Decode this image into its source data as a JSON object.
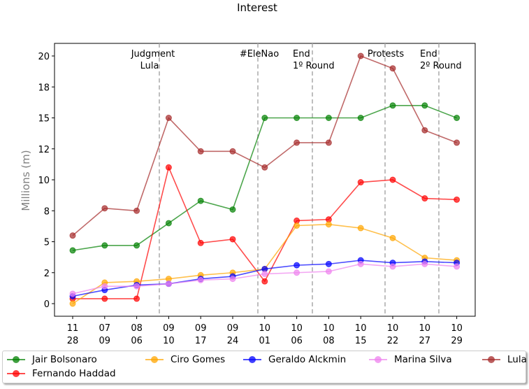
{
  "chart_data": {
    "type": "line",
    "title": "Interest",
    "ylabel": "Millions (m)",
    "xlabel": "",
    "x_ticks": [
      [
        "11",
        "28"
      ],
      [
        "07",
        "09"
      ],
      [
        "08",
        "06"
      ],
      [
        "09",
        "10"
      ],
      [
        "09",
        "17"
      ],
      [
        "09",
        "24"
      ],
      [
        "10",
        "01"
      ],
      [
        "10",
        "06"
      ],
      [
        "10",
        "08"
      ],
      [
        "10",
        "15"
      ],
      [
        "10",
        "22"
      ],
      [
        "10",
        "27"
      ],
      [
        "10",
        "29"
      ]
    ],
    "y_ticks": [
      "0",
      "2",
      "5",
      "8",
      "10",
      "12",
      "15",
      "18",
      "20"
    ],
    "ylim": [
      -1,
      21
    ],
    "grid": false,
    "legend_position": "bottom",
    "events": [
      {
        "label": "Judgment\nLula"
      },
      {
        "label": "#EleNao"
      },
      {
        "label": "End\n1º Round"
      },
      {
        "label": "Protests"
      },
      {
        "label": "End\n2º Round"
      }
    ],
    "series": [
      {
        "name": "Jair Bolsonaro",
        "color": "#008000",
        "values": [
          4.3,
          4.7,
          4.7,
          6.5,
          8.3,
          7.6,
          15.0,
          15.0,
          15.0,
          15.0,
          16.0,
          16.0,
          15.0
        ]
      },
      {
        "name": "Fernando Haddad",
        "color": "#ff0000",
        "values": [
          0.4,
          0.4,
          0.4,
          11.0,
          4.9,
          5.2,
          1.8,
          6.7,
          6.8,
          9.8,
          10.0,
          8.5,
          8.4
        ]
      },
      {
        "name": "Ciro Gomes",
        "color": "#ffa500",
        "values": [
          0.0,
          1.7,
          1.8,
          2.0,
          2.3,
          2.5,
          2.8,
          6.3,
          6.4,
          6.1,
          5.3,
          3.7,
          3.5
        ]
      },
      {
        "name": "Geraldo Alckmin",
        "color": "#0000ff",
        "values": [
          0.6,
          1.1,
          1.5,
          1.6,
          2.0,
          2.2,
          2.8,
          3.1,
          3.2,
          3.5,
          3.3,
          3.4,
          3.3
        ]
      },
      {
        "name": "Marina Silva",
        "color": "#ee82ee",
        "values": [
          0.8,
          1.4,
          1.4,
          1.6,
          1.9,
          2.0,
          2.4,
          2.5,
          2.6,
          3.2,
          3.0,
          3.2,
          3.0
        ]
      },
      {
        "name": "Lula",
        "color": "#a52a2a",
        "values": [
          5.5,
          7.7,
          7.5,
          15.0,
          12.3,
          12.3,
          11.0,
          13.0,
          13.0,
          20.0,
          19.0,
          14.0,
          13.0
        ]
      }
    ]
  }
}
